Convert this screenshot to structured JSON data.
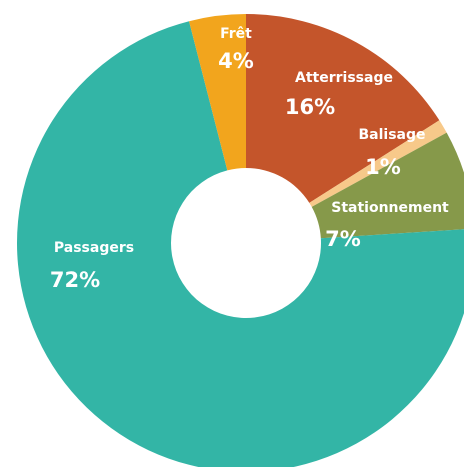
{
  "chart_data": {
    "type": "donut",
    "categories": [
      "Atterrissage",
      "Balisage",
      "Stationnement",
      "Passagers",
      "Frêt"
    ],
    "values": [
      16,
      1,
      7,
      72,
      4
    ],
    "value_labels": [
      "16%",
      "1%",
      "7%",
      "72%",
      "4%"
    ],
    "colors": [
      "#c4552b",
      "#f7c98a",
      "#86994a",
      "#33b5a6",
      "#f2a51d"
    ]
  }
}
